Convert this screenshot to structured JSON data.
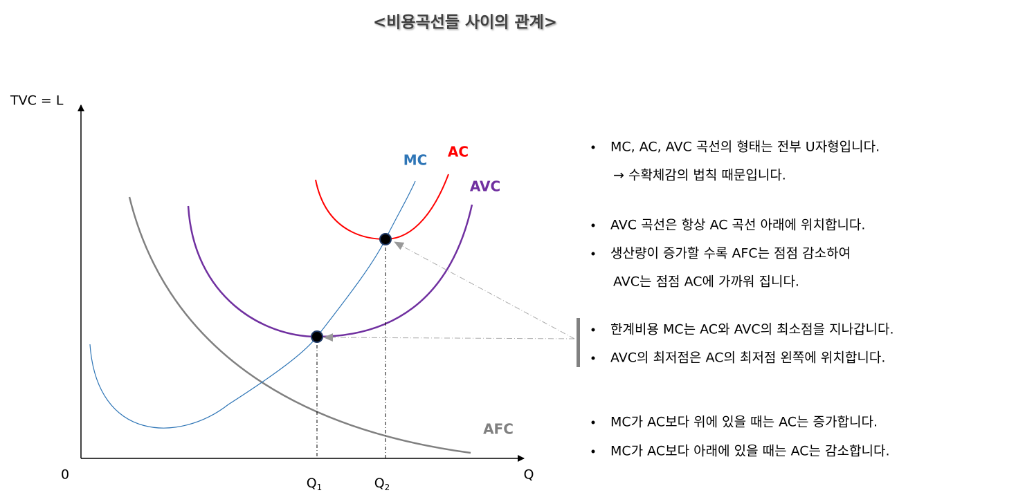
{
  "title": "<비용곡선들 사이의 관계>",
  "axes": {
    "y_label": "TVC = L",
    "origin": "0",
    "x_label": "Q",
    "q1": {
      "base": "Q",
      "sub": "1"
    },
    "q2": {
      "base": "Q",
      "sub": "2"
    }
  },
  "curves": {
    "mc": "MC",
    "ac": "AC",
    "avc": "AVC",
    "afc": "AFC"
  },
  "notes": [
    {
      "text": "MC, AC, AVC 곡선의 형태는 전부 U자형입니다.",
      "cont": "→ 수확체감의 법칙 때문입니다."
    },
    {
      "text": "AVC 곡선은 항상 AC 곡선 아래에 위치합니다."
    },
    {
      "text": "생산량이 증가할 수록 AFC는 점점 감소하여",
      "cont": "AVC는 점점 AC에 가까워 집니다."
    },
    {
      "text": "한계비용 MC는 AC와 AVC의 최소점을 지나갑니다."
    },
    {
      "text": "AVC의 최저점은 AC의 최저점 왼쪽에 위치합니다."
    },
    {
      "text": "MC가 AC보다 위에 있을 때는 AC는 증가합니다."
    },
    {
      "text": "MC가 AC보다 아래에 있을 때는 AC는 감소합니다."
    }
  ]
}
